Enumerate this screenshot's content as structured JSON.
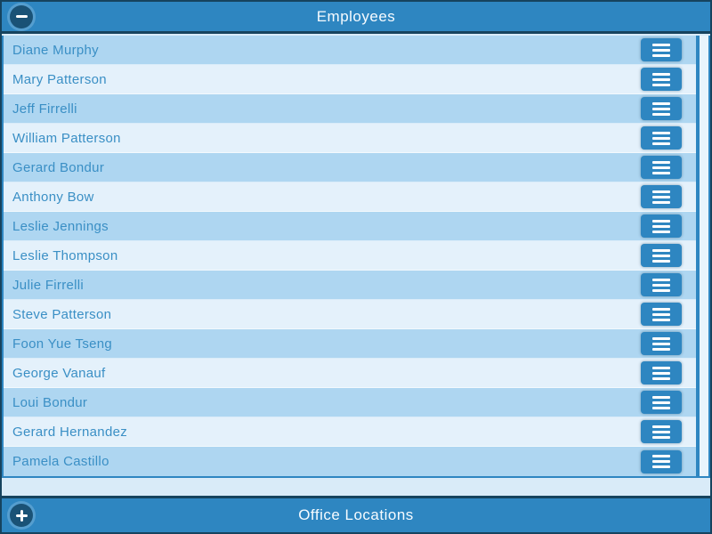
{
  "colors": {
    "accent_blue": "#2e86c1",
    "dark_navy": "#16435e",
    "circle_button_navy": "#1a5276",
    "row_odd_bg": "#aed6f1",
    "row_even_bg": "#e4f1fb",
    "name_text": "#3a8fc5",
    "bar_title_text": "#ffffff",
    "scroll_track_bg": "#e9f4fc"
  },
  "icons": {
    "collapse": "minus-icon",
    "expand": "plus-icon",
    "row_menu": "menu-icon"
  },
  "sections": {
    "employees": {
      "title": "Employees",
      "state": "expanded"
    },
    "office_locations": {
      "title": "Office Locations",
      "state": "collapsed"
    }
  },
  "employees": [
    {
      "name": "Diane Murphy"
    },
    {
      "name": "Mary Patterson"
    },
    {
      "name": "Jeff Firrelli"
    },
    {
      "name": "William Patterson"
    },
    {
      "name": "Gerard Bondur"
    },
    {
      "name": "Anthony Bow"
    },
    {
      "name": "Leslie Jennings"
    },
    {
      "name": "Leslie Thompson"
    },
    {
      "name": "Julie Firrelli"
    },
    {
      "name": "Steve Patterson"
    },
    {
      "name": "Foon Yue Tseng"
    },
    {
      "name": "George Vanauf"
    },
    {
      "name": "Loui Bondur"
    },
    {
      "name": "Gerard Hernandez"
    },
    {
      "name": "Pamela Castillo"
    }
  ]
}
